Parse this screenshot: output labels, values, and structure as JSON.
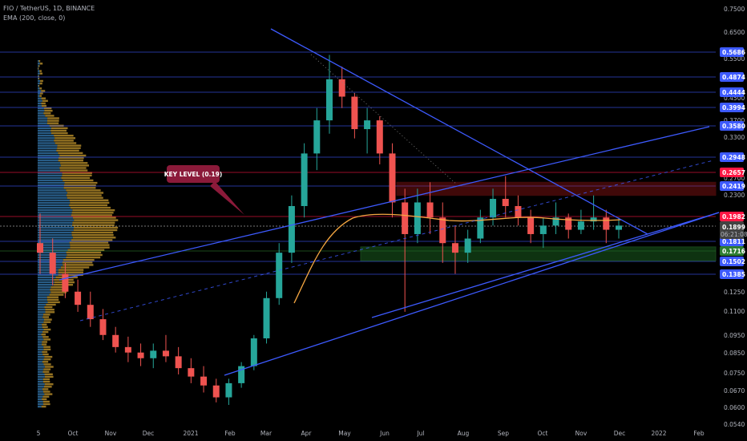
{
  "header": {
    "symbol_line": "FIO / TetherUS, 1D, BINANCE",
    "indicator_line": "EMA (200, close, 0)"
  },
  "colors": {
    "background": "#000000",
    "trendline": "#3d5afe",
    "level_line": "#3d5afe",
    "ema": "#f5a742",
    "red_level": "#ff1744",
    "resistance_zone": "#b71c1c",
    "support_zone": "#1b5e20",
    "candle_up": "#26a69a",
    "candle_down": "#ef5350",
    "vp_blue": "#2f6c9e",
    "vp_gold": "#c79a2e"
  },
  "annotation": {
    "label": "KEY LEVEL (0.19)",
    "color": "#8b1a3a"
  },
  "chart_data": {
    "type": "candlestick",
    "title": "FIO / TetherUS, 1D, BINANCE",
    "y_scale": "log",
    "y_ticks": [
      "0.7500",
      "0.6500",
      "0.5500",
      "0.4500",
      "0.3700",
      "0.3300",
      "0.2700",
      "0.2300",
      "0.1899",
      "0.1650",
      "0.1250",
      "0.1100",
      "0.0950",
      "0.0850",
      "0.0750",
      "0.0670",
      "0.0600",
      "0.0540"
    ],
    "x_ticks": [
      "5",
      "Oct",
      "Nov",
      "Dec",
      "2021",
      "Feb",
      "Mar",
      "Apr",
      "May",
      "Jun",
      "Jul",
      "Aug",
      "Sep",
      "Oct",
      "Nov",
      "Dec",
      "2022",
      "Feb"
    ],
    "last_price": "0.1899",
    "countdown": "06:21:08",
    "price_levels": [
      {
        "value": "0.5686",
        "style": "blue"
      },
      {
        "value": "0.4874",
        "style": "blue"
      },
      {
        "value": "0.4444",
        "style": "blue"
      },
      {
        "value": "0.3994",
        "style": "blue"
      },
      {
        "value": "0.3580",
        "style": "blue"
      },
      {
        "value": "0.2948",
        "style": "blue"
      },
      {
        "value": "0.2657",
        "style": "red"
      },
      {
        "value": "0.2419",
        "style": "blue"
      },
      {
        "value": "0.1982",
        "style": "red"
      },
      {
        "value": "0.1811",
        "style": "blue"
      },
      {
        "value": "0.1716",
        "style": "green"
      },
      {
        "value": "0.1502",
        "style": "blue"
      },
      {
        "value": "0.1385",
        "style": "blue"
      }
    ],
    "zones": [
      {
        "name": "resistance",
        "from": 0.23,
        "to": 0.25
      },
      {
        "name": "support",
        "from": 0.152,
        "to": 0.166
      }
    ],
    "candles_ohlc_approx": [
      [
        0.17,
        0.205,
        0.14,
        0.16
      ],
      [
        0.16,
        0.175,
        0.13,
        0.14
      ],
      [
        0.14,
        0.15,
        0.12,
        0.125
      ],
      [
        0.125,
        0.135,
        0.11,
        0.115
      ],
      [
        0.115,
        0.125,
        0.1,
        0.105
      ],
      [
        0.105,
        0.112,
        0.092,
        0.095
      ],
      [
        0.095,
        0.1,
        0.085,
        0.088
      ],
      [
        0.088,
        0.094,
        0.08,
        0.085
      ],
      [
        0.085,
        0.09,
        0.078,
        0.082
      ],
      [
        0.082,
        0.09,
        0.077,
        0.086
      ],
      [
        0.086,
        0.095,
        0.08,
        0.083
      ],
      [
        0.083,
        0.088,
        0.074,
        0.077
      ],
      [
        0.077,
        0.082,
        0.07,
        0.073
      ],
      [
        0.073,
        0.078,
        0.066,
        0.069
      ],
      [
        0.069,
        0.072,
        0.062,
        0.064
      ],
      [
        0.064,
        0.072,
        0.061,
        0.07
      ],
      [
        0.07,
        0.08,
        0.068,
        0.078
      ],
      [
        0.078,
        0.095,
        0.076,
        0.093
      ],
      [
        0.093,
        0.125,
        0.09,
        0.12
      ],
      [
        0.12,
        0.17,
        0.115,
        0.16
      ],
      [
        0.16,
        0.23,
        0.15,
        0.215
      ],
      [
        0.215,
        0.32,
        0.2,
        0.3
      ],
      [
        0.3,
        0.4,
        0.27,
        0.37
      ],
      [
        0.37,
        0.56,
        0.34,
        0.48
      ],
      [
        0.48,
        0.52,
        0.4,
        0.43
      ],
      [
        0.43,
        0.44,
        0.33,
        0.35
      ],
      [
        0.35,
        0.4,
        0.3,
        0.37
      ],
      [
        0.37,
        0.38,
        0.28,
        0.3
      ],
      [
        0.3,
        0.32,
        0.2,
        0.22
      ],
      [
        0.22,
        0.24,
        0.11,
        0.18
      ],
      [
        0.18,
        0.24,
        0.17,
        0.22
      ],
      [
        0.22,
        0.25,
        0.18,
        0.2
      ],
      [
        0.2,
        0.22,
        0.15,
        0.17
      ],
      [
        0.17,
        0.19,
        0.14,
        0.16
      ],
      [
        0.16,
        0.185,
        0.15,
        0.175
      ],
      [
        0.175,
        0.21,
        0.17,
        0.2
      ],
      [
        0.2,
        0.24,
        0.19,
        0.225
      ],
      [
        0.225,
        0.26,
        0.2,
        0.215
      ],
      [
        0.215,
        0.23,
        0.19,
        0.2
      ],
      [
        0.2,
        0.21,
        0.17,
        0.18
      ],
      [
        0.18,
        0.2,
        0.165,
        0.19
      ],
      [
        0.19,
        0.22,
        0.18,
        0.2
      ],
      [
        0.2,
        0.205,
        0.175,
        0.185
      ],
      [
        0.185,
        0.21,
        0.18,
        0.195
      ],
      [
        0.195,
        0.23,
        0.185,
        0.2
      ],
      [
        0.2,
        0.21,
        0.17,
        0.185
      ],
      [
        0.185,
        0.2,
        0.175,
        0.19
      ]
    ],
    "ema_200_approx": [
      [
        0.13,
        "Feb-end"
      ],
      [
        0.16,
        "Mar"
      ],
      [
        0.185,
        "Apr"
      ],
      [
        0.195,
        "May"
      ],
      [
        0.198,
        "Jul"
      ],
      [
        0.196,
        "Sep"
      ],
      [
        0.195,
        "Dec"
      ]
    ]
  }
}
